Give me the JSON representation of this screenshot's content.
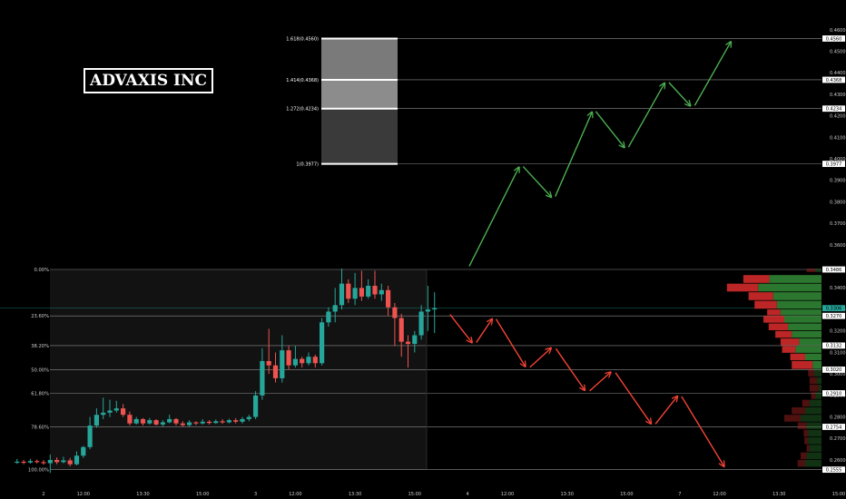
{
  "chart_data": {
    "type": "candlestick",
    "title": "ADVAXIS INC",
    "price_axis": {
      "ticks": [
        {
          "label": "0.4600",
          "v": 0.46
        },
        {
          "label": "0.4500",
          "v": 0.45
        },
        {
          "label": "0.4400",
          "v": 0.44
        },
        {
          "label": "0.4300",
          "v": 0.43
        },
        {
          "label": "0.4200",
          "v": 0.42
        },
        {
          "label": "0.4100",
          "v": 0.41
        },
        {
          "label": "0.4000",
          "v": 0.4
        },
        {
          "label": "0.3900",
          "v": 0.39
        },
        {
          "label": "0.3800",
          "v": 0.38
        },
        {
          "label": "0.3700",
          "v": 0.37
        },
        {
          "label": "0.3600",
          "v": 0.36
        },
        {
          "label": "0.3400",
          "v": 0.34
        },
        {
          "label": "0.3300",
          "v": 0.33
        },
        {
          "label": "0.3200",
          "v": 0.32
        },
        {
          "label": "0.3100",
          "v": 0.31
        },
        {
          "label": "0.3000",
          "v": 0.3
        },
        {
          "label": "0.2900",
          "v": 0.29
        },
        {
          "label": "0.2800",
          "v": 0.28
        },
        {
          "label": "0.2700",
          "v": 0.27
        },
        {
          "label": "0.2600",
          "v": 0.26
        }
      ],
      "markers": [
        {
          "label": "0.4560",
          "v": 0.456
        },
        {
          "label": "0.4368",
          "v": 0.4368
        },
        {
          "label": "0.4234",
          "v": 0.4234
        },
        {
          "label": "0.3977",
          "v": 0.3977
        },
        {
          "label": "0.3486",
          "v": 0.3486
        },
        {
          "label": "0.3270",
          "v": 0.327
        },
        {
          "label": "0.3132",
          "v": 0.3132
        },
        {
          "label": "0.3020",
          "v": 0.302
        },
        {
          "label": "0.2910",
          "v": 0.291
        },
        {
          "label": "0.2754",
          "v": 0.2754
        },
        {
          "label": "0.2555",
          "v": 0.2555
        }
      ],
      "last_price": {
        "label": "0.3306",
        "v": 0.3306,
        "color": "#26a69a"
      }
    },
    "time_axis": [
      {
        "label": "2",
        "t": 0
      },
      {
        "label": "12:00",
        "t": 6
      },
      {
        "label": "13:30",
        "t": 15
      },
      {
        "label": "15:00",
        "t": 24
      },
      {
        "label": "3",
        "t": 32
      },
      {
        "label": "12:00",
        "t": 38
      },
      {
        "label": "13:30",
        "t": 47
      },
      {
        "label": "15:00",
        "t": 56
      },
      {
        "label": "4",
        "t": 64
      },
      {
        "label": "12:00",
        "t": 70
      },
      {
        "label": "13:30",
        "t": 79
      },
      {
        "label": "15:00",
        "t": 88
      },
      {
        "label": "7",
        "t": 96
      },
      {
        "label": "12:00",
        "t": 102
      },
      {
        "label": "13:30",
        "t": 111
      },
      {
        "label": "15:00",
        "t": 120
      }
    ],
    "fib_retracement": {
      "high": 0.3486,
      "low": 0.2555,
      "levels": [
        {
          "label": "0.00%",
          "v": 0.3486
        },
        {
          "label": "23.60%",
          "v": 0.327
        },
        {
          "label": "38.20%",
          "v": 0.3132
        },
        {
          "label": "50.00%",
          "v": 0.302
        },
        {
          "label": "61.80%",
          "v": 0.291
        },
        {
          "label": "78.60%",
          "v": 0.2754
        },
        {
          "label": "100.00%",
          "v": 0.2555
        }
      ]
    },
    "fib_extension": [
      {
        "label": "1.618(0.4560)",
        "v": 0.456
      },
      {
        "label": "1.414(0.4368)",
        "v": 0.4368
      },
      {
        "label": "1.272(0.4234)",
        "v": 0.4234
      },
      {
        "label": "1(0.3977)",
        "v": 0.3977
      }
    ],
    "candles": [
      [
        -4,
        0.2588,
        0.2592,
        0.2605,
        0.2582
      ],
      [
        -3,
        0.2592,
        0.2588,
        0.26,
        0.258
      ],
      [
        -2,
        0.2588,
        0.2595,
        0.2605,
        0.2583
      ],
      [
        -1,
        0.2595,
        0.259,
        0.2602,
        0.2584
      ],
      [
        0,
        0.259,
        0.2585,
        0.26,
        0.2578
      ],
      [
        1,
        0.2585,
        0.26,
        0.2625,
        0.254
      ],
      [
        2,
        0.26,
        0.259,
        0.2612,
        0.258
      ],
      [
        3,
        0.259,
        0.2598,
        0.2615,
        0.2585
      ],
      [
        4,
        0.2598,
        0.258,
        0.261,
        0.257
      ],
      [
        5,
        0.258,
        0.262,
        0.264,
        0.2575
      ],
      [
        6,
        0.262,
        0.266,
        0.2665,
        0.261
      ],
      [
        7,
        0.266,
        0.276,
        0.28,
        0.265
      ],
      [
        8,
        0.276,
        0.281,
        0.284,
        0.275
      ],
      [
        9,
        0.281,
        0.282,
        0.289,
        0.279
      ],
      [
        10,
        0.282,
        0.283,
        0.288,
        0.28
      ],
      [
        11,
        0.283,
        0.284,
        0.2875,
        0.282
      ],
      [
        12,
        0.284,
        0.281,
        0.286,
        0.28
      ],
      [
        13,
        0.281,
        0.277,
        0.2825,
        0.276
      ],
      [
        14,
        0.277,
        0.279,
        0.28,
        0.2765
      ],
      [
        15,
        0.279,
        0.277,
        0.2795,
        0.276
      ],
      [
        16,
        0.277,
        0.2785,
        0.2795,
        0.2765
      ],
      [
        17,
        0.2785,
        0.2765,
        0.279,
        0.276
      ],
      [
        18,
        0.2765,
        0.2775,
        0.2785,
        0.2755
      ],
      [
        19,
        0.2775,
        0.279,
        0.281,
        0.277
      ],
      [
        20,
        0.279,
        0.277,
        0.2795,
        0.276
      ],
      [
        21,
        0.277,
        0.2762,
        0.278,
        0.2755
      ],
      [
        22,
        0.2762,
        0.2775,
        0.2785,
        0.2755
      ],
      [
        23,
        0.2775,
        0.277,
        0.278,
        0.2762
      ],
      [
        24,
        0.277,
        0.2778,
        0.279,
        0.2765
      ],
      [
        25,
        0.2778,
        0.2772,
        0.2785,
        0.2765
      ],
      [
        26,
        0.2772,
        0.278,
        0.2788,
        0.2768
      ],
      [
        27,
        0.278,
        0.2775,
        0.279,
        0.2768
      ],
      [
        28,
        0.2775,
        0.2785,
        0.2792,
        0.277
      ],
      [
        29,
        0.2785,
        0.2778,
        0.2795,
        0.277
      ],
      [
        30,
        0.2778,
        0.279,
        0.28,
        0.277
      ],
      [
        31,
        0.279,
        0.28,
        0.281,
        0.278
      ],
      [
        32,
        0.28,
        0.29,
        0.292,
        0.279
      ],
      [
        33,
        0.29,
        0.306,
        0.312,
        0.288
      ],
      [
        34,
        0.306,
        0.304,
        0.321,
        0.3
      ],
      [
        35,
        0.304,
        0.298,
        0.31,
        0.296
      ],
      [
        36,
        0.298,
        0.311,
        0.318,
        0.296
      ],
      [
        37,
        0.311,
        0.304,
        0.313,
        0.302
      ],
      [
        38,
        0.304,
        0.307,
        0.313,
        0.303
      ],
      [
        39,
        0.307,
        0.305,
        0.308,
        0.303
      ],
      [
        40,
        0.305,
        0.308,
        0.31,
        0.304
      ],
      [
        41,
        0.308,
        0.305,
        0.309,
        0.303
      ],
      [
        42,
        0.305,
        0.324,
        0.326,
        0.304
      ],
      [
        43,
        0.324,
        0.329,
        0.331,
        0.322
      ],
      [
        44,
        0.329,
        0.332,
        0.34,
        0.324
      ],
      [
        45,
        0.332,
        0.342,
        0.349,
        0.33
      ],
      [
        46,
        0.342,
        0.335,
        0.344,
        0.333
      ],
      [
        47,
        0.335,
        0.34,
        0.347,
        0.332
      ],
      [
        48,
        0.34,
        0.336,
        0.348,
        0.334
      ],
      [
        49,
        0.336,
        0.341,
        0.344,
        0.335
      ],
      [
        50,
        0.341,
        0.337,
        0.348,
        0.335
      ],
      [
        51,
        0.337,
        0.339,
        0.342,
        0.334
      ],
      [
        52,
        0.339,
        0.331,
        0.341,
        0.327
      ],
      [
        53,
        0.331,
        0.326,
        0.333,
        0.313
      ],
      [
        54,
        0.326,
        0.315,
        0.328,
        0.308
      ],
      [
        55,
        0.315,
        0.314,
        0.318,
        0.303
      ],
      [
        56,
        0.314,
        0.318,
        0.32,
        0.31
      ],
      [
        57,
        0.318,
        0.329,
        0.332,
        0.316
      ],
      [
        58,
        0.329,
        0.33,
        0.341,
        0.32
      ],
      [
        59,
        0.33,
        0.3306,
        0.338,
        0.319
      ]
    ],
    "projection_up": [
      [
        64,
        0.3486
      ],
      [
        72,
        0.3977
      ],
      [
        77,
        0.381
      ],
      [
        83,
        0.4234
      ],
      [
        88,
        0.404
      ],
      [
        94,
        0.4368
      ],
      [
        98,
        0.4234
      ],
      [
        104,
        0.456
      ]
    ],
    "projection_down": [
      [
        61,
        0.329
      ],
      [
        65,
        0.3132
      ],
      [
        68,
        0.327
      ],
      [
        73,
        0.302
      ],
      [
        77,
        0.3132
      ],
      [
        82,
        0.291
      ],
      [
        86,
        0.302
      ],
      [
        92,
        0.2754
      ],
      [
        96,
        0.291
      ],
      [
        103,
        0.2555
      ]
    ],
    "volume_profile": [
      [
        0.349,
        0.347,
        0.0,
        12,
        8
      ],
      [
        0.346,
        0.342,
        0.0,
        35,
        70
      ],
      [
        0.342,
        0.338,
        0.0,
        42,
        85
      ],
      [
        0.338,
        0.334,
        0.0,
        33,
        65
      ],
      [
        0.334,
        0.33,
        0.0,
        30,
        60
      ],
      [
        0.33,
        0.327,
        0.0,
        18,
        55
      ],
      [
        0.327,
        0.3235,
        0.0,
        28,
        50
      ],
      [
        0.3235,
        0.32,
        0.0,
        26,
        45
      ],
      [
        0.32,
        0.3165,
        0.0,
        22,
        40
      ],
      [
        0.3165,
        0.313,
        0.0,
        25,
        30
      ],
      [
        0.313,
        0.3095,
        0.0,
        18,
        35
      ],
      [
        0.3095,
        0.306,
        0.0,
        20,
        22
      ],
      [
        0.306,
        0.302,
        0.0,
        28,
        12
      ],
      [
        0.302,
        0.2985,
        0.0,
        8,
        10
      ],
      [
        0.2985,
        0.295,
        0.0,
        10,
        6
      ],
      [
        0.295,
        0.2915,
        0.0,
        12,
        4
      ],
      [
        0.2915,
        0.288,
        0.0,
        6,
        8
      ],
      [
        0.288,
        0.2845,
        0.0,
        10,
        16
      ],
      [
        0.2845,
        0.281,
        0.0,
        18,
        22
      ],
      [
        0.281,
        0.2775,
        0.0,
        22,
        28
      ],
      [
        0.2775,
        0.274,
        0.0,
        12,
        20
      ],
      [
        0.274,
        0.2705,
        0.0,
        6,
        18
      ],
      [
        0.2705,
        0.267,
        0.0,
        5,
        18
      ],
      [
        0.267,
        0.2635,
        0.0,
        4,
        16
      ],
      [
        0.2635,
        0.26,
        0.0,
        8,
        20
      ],
      [
        0.26,
        0.2565,
        0.0,
        10,
        22
      ]
    ],
    "colors": {
      "background": "#000000",
      "panel": "#121212",
      "up": "#26a69a",
      "down": "#ef5350",
      "projection_up": "#4caf50",
      "projection_down": "#f44336",
      "level_line": "#8c8c8c",
      "vp_up": "#2e7d32",
      "vp_down": "#c62828"
    }
  }
}
